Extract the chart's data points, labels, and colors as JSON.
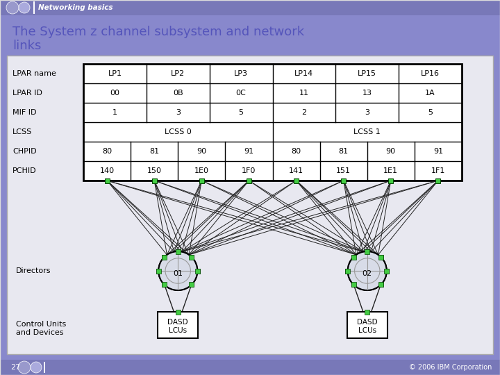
{
  "title_line1": "The System z channel subsystem and network",
  "title_line2": "links",
  "header_text": "Networking basics",
  "slide_number": "27",
  "copyright": "© 2006 IBM Corporation",
  "bg_color": "#8888cc",
  "header_bg": "#7878b8",
  "footer_bg": "#7878b8",
  "title_color": "#5555bb",
  "table_bg": "#ffffff",
  "table": {
    "row_labels": [
      "LPAR name",
      "LPAR ID",
      "MIF ID",
      "LCSS",
      "CHPID",
      "PCHID"
    ],
    "lpar_cols": [
      "LP1",
      "LP2",
      "LP3",
      "LP14",
      "LP15",
      "LP16"
    ],
    "lpar_id": [
      "00",
      "0B",
      "0C",
      "11",
      "13",
      "1A"
    ],
    "mif_id": [
      "1",
      "3",
      "5",
      "2",
      "3",
      "5"
    ],
    "lcss_labels": [
      "LCSS 0",
      "LCSS 1"
    ],
    "chpid": [
      "80",
      "81",
      "90",
      "91",
      "80",
      "81",
      "90",
      "91"
    ],
    "pchid": [
      "140",
      "150",
      "1E0",
      "1F0",
      "141",
      "151",
      "1E1",
      "1F1"
    ]
  },
  "directors": [
    "01",
    "02"
  ],
  "dasd_labels": [
    "DASD\nLCUs",
    "DASD\nLCUs"
  ],
  "green_color": "#44cc44",
  "line_color": "#222222",
  "white": "#ffffff",
  "black": "#000000",
  "director_label": "Directors",
  "cu_label": "Control Units\nand Devices",
  "outer_border": "#dddddd"
}
